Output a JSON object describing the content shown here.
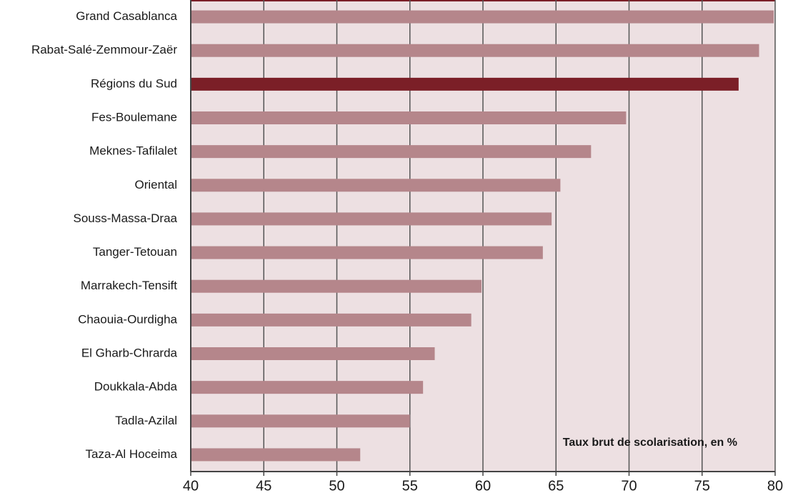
{
  "chart_data": {
    "type": "barh",
    "annotation": "Taux brut de scolarisation, en %",
    "categories": [
      "Grand Casablanca",
      "Rabat-Salé-Zemmour-Zaër",
      "Régions du Sud",
      "Fes-Boulemane",
      "Meknes-Tafilalet",
      "Oriental",
      "Souss-Massa-Draa",
      "Tanger-Tetouan",
      "Marrakech-Tensift",
      "Chaouia-Ourdigha",
      "El Gharb-Chrarda",
      "Doukkala-Abda",
      "Tadla-Azilal",
      "Taza-Al Hoceima"
    ],
    "values": [
      79.9,
      78.9,
      77.5,
      69.8,
      67.4,
      65.3,
      64.7,
      64.1,
      59.9,
      59.2,
      56.7,
      55.9,
      55.0,
      51.6
    ],
    "colors": [
      "#b5868b",
      "#b5868b",
      "#7b1f27",
      "#b5868b",
      "#b5868b",
      "#b5868b",
      "#b5868b",
      "#b5868b",
      "#b5868b",
      "#b5868b",
      "#b5868b",
      "#b5868b",
      "#b5868b",
      "#b5868b"
    ],
    "xlim": [
      40,
      80
    ],
    "xticks": [
      40,
      45,
      50,
      55,
      60,
      65,
      70,
      75,
      80
    ],
    "grid": true
  }
}
